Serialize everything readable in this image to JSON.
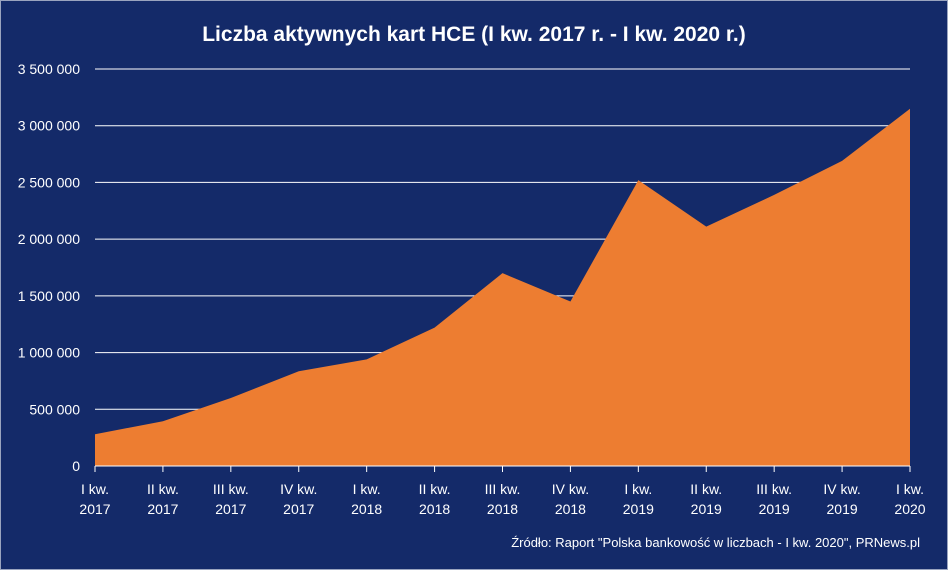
{
  "chart_data": {
    "type": "area",
    "title": "Liczba aktywnych kart HCE (I kw. 2017 r. - I kw. 2020 r.)",
    "categories": [
      [
        "I kw.",
        "2017"
      ],
      [
        "II kw.",
        "2017"
      ],
      [
        "III kw.",
        "2017"
      ],
      [
        "IV kw.",
        "2017"
      ],
      [
        "I kw.",
        "2018"
      ],
      [
        "II kw.",
        "2018"
      ],
      [
        "III kw.",
        "2018"
      ],
      [
        "IV kw.",
        "2018"
      ],
      [
        "I kw.",
        "2019"
      ],
      [
        "II kw.",
        "2019"
      ],
      [
        "III kw.",
        "2019"
      ],
      [
        "IV kw.",
        "2019"
      ],
      [
        "I kw.",
        "2020"
      ]
    ],
    "series": [
      {
        "values": [
          280000,
          395000,
          600000,
          835000,
          940000,
          1220000,
          1700000,
          1450000,
          2520000,
          2110000,
          2390000,
          2690000,
          3150000
        ],
        "color": "#ed7d31"
      }
    ],
    "yticks": [
      "0",
      "500 000",
      "1 000 000",
      "1 500 000",
      "2 000 000",
      "2 500 000",
      "3 000 000",
      "3 500 000"
    ],
    "ylim": [
      0,
      3500000
    ],
    "ytick_step": 500000,
    "grid": true,
    "legend": "none",
    "source": "Źródło: Raport \"Polska bankowość w liczbach - I kw. 2020\", PRNews.pl"
  },
  "colors": {
    "background": "#142a69",
    "grid": "#ffffff",
    "text": "#ffffff",
    "area": "#ed7d31"
  }
}
